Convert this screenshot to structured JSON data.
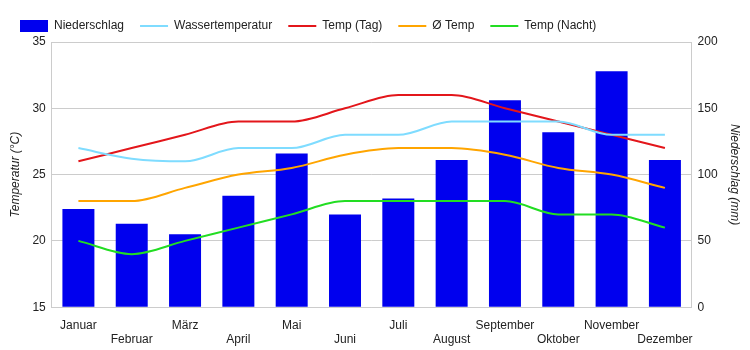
{
  "chart_data": {
    "type": "bar",
    "categories": [
      "Januar",
      "Februar",
      "März",
      "April",
      "Mai",
      "Juni",
      "Juli",
      "August",
      "September",
      "Oktober",
      "November",
      "Dezember"
    ],
    "series": [
      {
        "name": "Niederschlag",
        "type": "bar",
        "axis": "y2",
        "color": "#0000ee",
        "values": [
          74,
          63,
          55,
          84,
          116,
          70,
          82,
          111,
          156,
          132,
          178,
          111
        ]
      },
      {
        "name": "Wassertemperatur",
        "type": "line",
        "color": "#7fdcff",
        "values": [
          27,
          26.2,
          26,
          27,
          27,
          28,
          28,
          29,
          29,
          29,
          28,
          28
        ]
      },
      {
        "name": "Temp (Tag)",
        "type": "line",
        "color": "#e3161b",
        "values": [
          26,
          27,
          28,
          29,
          29,
          30,
          31,
          31,
          30,
          29,
          28,
          27
        ]
      },
      {
        "name": "Ø Temp",
        "type": "line",
        "color": "#ffa500",
        "values": [
          23,
          23,
          24,
          25,
          25.5,
          26.5,
          27,
          27,
          26.5,
          25.5,
          25,
          24
        ]
      },
      {
        "name": "Temp (Nacht)",
        "type": "line",
        "color": "#22dd22",
        "values": [
          20,
          19,
          20,
          21,
          22,
          23,
          23,
          23,
          23,
          22,
          22,
          21
        ]
      }
    ],
    "y_label": "Temperatur (°C)",
    "y2_label": "Niederschlag (mm)",
    "ylim": [
      15,
      35
    ],
    "yticks": [
      15,
      20,
      25,
      30,
      35
    ],
    "y2lim": [
      0,
      200
    ],
    "y2ticks": [
      0,
      50,
      100,
      150,
      200
    ],
    "grid": true,
    "legend": "top"
  }
}
